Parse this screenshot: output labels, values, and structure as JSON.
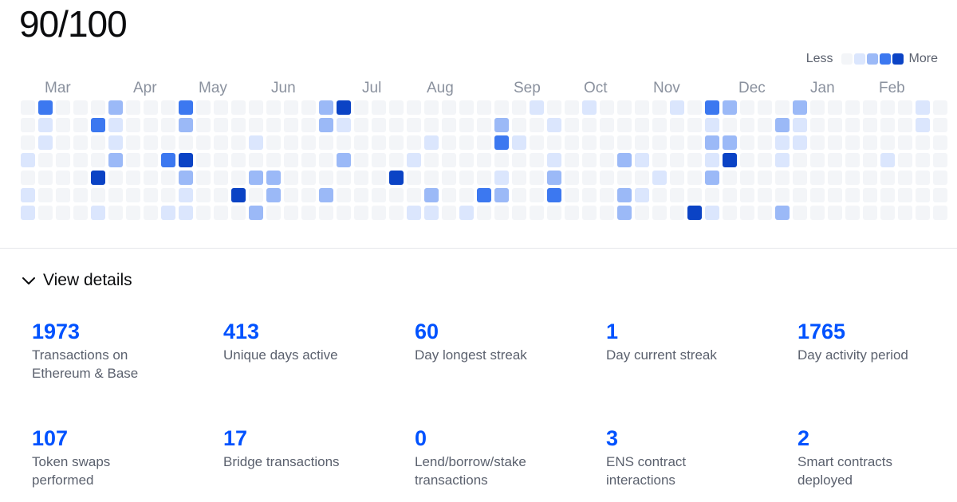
{
  "score": "90/100",
  "legend": {
    "less": "Less",
    "more": "More"
  },
  "colors": {
    "empty": "#f3f5f8",
    "level1": "#dbe6fd",
    "level2": "#9bb9f7",
    "level3": "#3c78f0",
    "level4": "#0b43c5",
    "accent": "#0052ff"
  },
  "months": [
    "Mar",
    "Apr",
    "May",
    "Jun",
    "Jul",
    "Aug",
    "Sep",
    "Oct",
    "Nov",
    "Dec",
    "Jan",
    "Feb"
  ],
  "heatmap": {
    "weeks": 53,
    "days": 7,
    "active": [
      [
        1,
        0,
        3
      ],
      [
        1,
        1,
        1
      ],
      [
        1,
        2,
        1
      ],
      [
        0,
        3,
        1
      ],
      [
        0,
        5,
        1
      ],
      [
        0,
        6,
        1
      ],
      [
        4,
        1,
        3
      ],
      [
        4,
        4,
        4
      ],
      [
        4,
        6,
        1
      ],
      [
        5,
        0,
        2
      ],
      [
        5,
        1,
        1
      ],
      [
        5,
        2,
        1
      ],
      [
        5,
        3,
        2
      ],
      [
        8,
        3,
        3
      ],
      [
        8,
        6,
        1
      ],
      [
        9,
        0,
        3
      ],
      [
        9,
        1,
        2
      ],
      [
        9,
        3,
        4
      ],
      [
        9,
        4,
        2
      ],
      [
        9,
        5,
        1
      ],
      [
        9,
        6,
        1
      ],
      [
        12,
        5,
        4
      ],
      [
        13,
        2,
        1
      ],
      [
        13,
        4,
        2
      ],
      [
        13,
        6,
        2
      ],
      [
        14,
        4,
        2
      ],
      [
        14,
        5,
        2
      ],
      [
        17,
        0,
        2
      ],
      [
        17,
        1,
        2
      ],
      [
        17,
        5,
        2
      ],
      [
        18,
        0,
        4
      ],
      [
        18,
        1,
        1
      ],
      [
        18,
        3,
        2
      ],
      [
        21,
        4,
        4
      ],
      [
        22,
        3,
        1
      ],
      [
        22,
        6,
        1
      ],
      [
        23,
        2,
        1
      ],
      [
        23,
        5,
        2
      ],
      [
        23,
        6,
        1
      ],
      [
        25,
        6,
        1
      ],
      [
        26,
        5,
        3
      ],
      [
        27,
        1,
        2
      ],
      [
        27,
        2,
        3
      ],
      [
        27,
        4,
        1
      ],
      [
        27,
        5,
        2
      ],
      [
        28,
        2,
        1
      ],
      [
        29,
        0,
        1
      ],
      [
        30,
        1,
        1
      ],
      [
        30,
        3,
        1
      ],
      [
        30,
        4,
        2
      ],
      [
        30,
        5,
        3
      ],
      [
        32,
        0,
        1
      ],
      [
        34,
        3,
        2
      ],
      [
        34,
        5,
        2
      ],
      [
        34,
        6,
        2
      ],
      [
        35,
        3,
        1
      ],
      [
        35,
        5,
        1
      ],
      [
        36,
        4,
        1
      ],
      [
        37,
        0,
        1
      ],
      [
        38,
        6,
        4
      ],
      [
        39,
        0,
        3
      ],
      [
        39,
        1,
        1
      ],
      [
        39,
        2,
        2
      ],
      [
        39,
        3,
        1
      ],
      [
        39,
        4,
        2
      ],
      [
        39,
        6,
        1
      ],
      [
        40,
        0,
        2
      ],
      [
        40,
        2,
        2
      ],
      [
        40,
        3,
        4
      ],
      [
        43,
        1,
        2
      ],
      [
        43,
        2,
        1
      ],
      [
        43,
        3,
        1
      ],
      [
        43,
        6,
        2
      ],
      [
        44,
        0,
        2
      ],
      [
        44,
        1,
        1
      ],
      [
        44,
        2,
        1
      ],
      [
        49,
        3,
        1
      ],
      [
        51,
        0,
        1
      ],
      [
        51,
        1,
        1
      ]
    ]
  },
  "details": {
    "toggle_label": "View details",
    "stats": [
      {
        "value": "1973",
        "desc": "Transactions on Ethereum & Base"
      },
      {
        "value": "413",
        "desc": "Unique days active"
      },
      {
        "value": "60",
        "desc": "Day longest streak"
      },
      {
        "value": "1",
        "desc": "Day current streak"
      },
      {
        "value": "1765",
        "desc": "Day activity period"
      },
      {
        "value": "107",
        "desc": "Token swaps performed"
      },
      {
        "value": "17",
        "desc": "Bridge transactions"
      },
      {
        "value": "0",
        "desc": "Lend/borrow/stake transactions"
      },
      {
        "value": "3",
        "desc": "ENS contract interactions"
      },
      {
        "value": "2",
        "desc": "Smart contracts deployed"
      }
    ]
  }
}
